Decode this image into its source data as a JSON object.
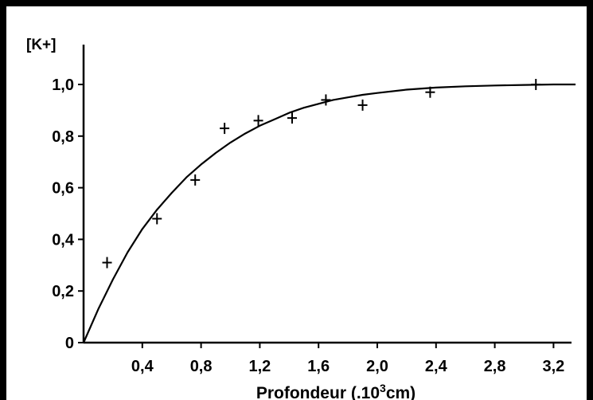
{
  "chart_data": {
    "type": "scatter",
    "title": "",
    "ylabel": "[K+]",
    "xlabel_prefix": "Profondeur (.10",
    "xlabel_exponent": "3",
    "xlabel_suffix": "cm)",
    "xlim": [
      0,
      3.3
    ],
    "ylim": [
      0,
      1.0
    ],
    "x_ticks": [
      0.4,
      0.8,
      1.2,
      1.6,
      2.0,
      2.4,
      2.8,
      3.2
    ],
    "x_tick_labels": [
      "0,4",
      "0,8",
      "1,2",
      "1,6",
      "2,0",
      "2,4",
      "2,8",
      "3,2"
    ],
    "y_ticks": [
      0,
      0.2,
      0.4,
      0.6,
      0.8,
      1.0
    ],
    "y_tick_labels": [
      "0",
      "0,2",
      "0,4",
      "0,6",
      "0,8",
      "1,0"
    ],
    "grid": false,
    "series": [
      {
        "kind": "points",
        "marker": "+",
        "x": [
          0.16,
          0.5,
          0.76,
          0.96,
          1.19,
          1.42,
          1.65,
          1.9,
          2.36,
          3.08
        ],
        "y": [
          0.31,
          0.48,
          0.63,
          0.83,
          0.86,
          0.87,
          0.94,
          0.92,
          0.97,
          1.0
        ]
      },
      {
        "kind": "curve",
        "x": [
          0,
          0.1,
          0.2,
          0.3,
          0.4,
          0.5,
          0.6,
          0.7,
          0.8,
          0.9,
          1.0,
          1.1,
          1.2,
          1.3,
          1.4,
          1.5,
          1.6,
          1.7,
          1.8,
          1.9,
          2.0,
          2.2,
          2.4,
          2.6,
          2.8,
          3.0,
          3.2,
          3.35
        ],
        "y": [
          0,
          0.13,
          0.245,
          0.35,
          0.44,
          0.515,
          0.58,
          0.64,
          0.69,
          0.735,
          0.775,
          0.81,
          0.84,
          0.865,
          0.89,
          0.91,
          0.925,
          0.94,
          0.95,
          0.96,
          0.967,
          0.98,
          0.988,
          0.993,
          0.996,
          0.998,
          1.0,
          1.0
        ]
      }
    ],
    "colors": {
      "ink": "#000000",
      "background": "#ffffff"
    }
  }
}
